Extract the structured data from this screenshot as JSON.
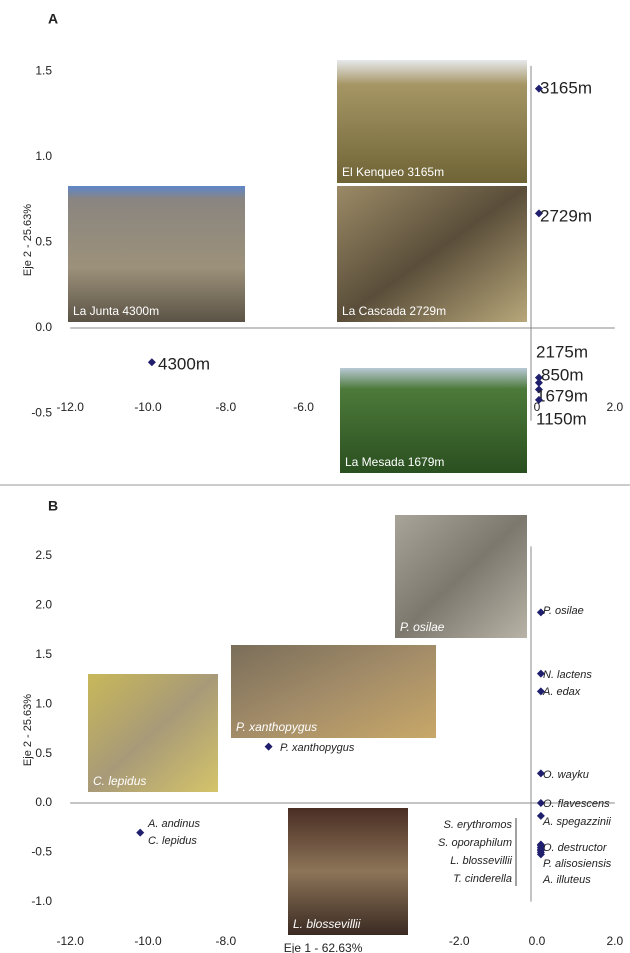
{
  "chart_data": [
    {
      "type": "scatter",
      "panel": "A",
      "ylabel": "Eje 2 - 25.63%",
      "xlim": [
        -12,
        2
      ],
      "ylim": [
        -0.6,
        1.65
      ],
      "xticks": [
        {
          "value": -12,
          "label": "-12.0"
        },
        {
          "value": -10,
          "label": "-10.0"
        },
        {
          "value": -8,
          "label": "-8.0"
        },
        {
          "value": -6,
          "label": "-6.0"
        },
        0,
        {
          "value": 2,
          "label": "2.0"
        }
      ],
      "yticks": [
        -0.5,
        {
          "value": 0,
          "label": "0.0"
        },
        0.5,
        {
          "value": 1,
          "label": "1.0"
        },
        1.5
      ],
      "color": "#1f1f6e",
      "x": [
        -9.9,
        0.05,
        0.05,
        0.05,
        0.05,
        0.05,
        0.05
      ],
      "values": [
        -0.2,
        1.4,
        0.67,
        -0.29,
        -0.32,
        -0.36,
        -0.42
      ],
      "point_labels": [
        [
          "4300m"
        ],
        [
          "3165m"
        ],
        [
          "2729m"
        ],
        [
          "2175m"
        ],
        [
          "850m"
        ],
        [
          "1679m"
        ],
        [
          "1150m"
        ]
      ],
      "photo_captions": [
        "El Kenqueo 3165m",
        "La Cascada 2729m",
        "La Junta 4300m",
        "La Mesada 1679m"
      ]
    },
    {
      "type": "scatter",
      "panel": "B",
      "ylabel": "Eje 2 - 25.63%",
      "xlabel": "Eje 1 - 62.63%",
      "xlim": [
        -12,
        2
      ],
      "ylim": [
        -1.1,
        2.8
      ],
      "xticks": [
        {
          "value": -12,
          "label": "-12.0"
        },
        {
          "value": -10,
          "label": "-10.0"
        },
        {
          "value": -8,
          "label": "-8.0"
        },
        {
          "value": -2,
          "label": "-2.0"
        },
        {
          "value": 0,
          "label": "0.0"
        },
        {
          "value": 2,
          "label": "2.0"
        }
      ],
      "yticks": [
        {
          "value": -1,
          "label": "-1.0"
        },
        -0.5,
        {
          "value": 0,
          "label": "0.0"
        },
        0.5,
        {
          "value": 1,
          "label": "1.0"
        },
        1.5,
        {
          "value": 2,
          "label": "2.0"
        },
        2.5
      ],
      "color": "#1f1f6e",
      "x": [
        0.1,
        0.1,
        0.1,
        -6.9,
        0.1,
        0.1,
        0.1,
        -10.2,
        0.1,
        0.1,
        0.1,
        0.1,
        0.1,
        0.1,
        0.1
      ],
      "values": [
        1.93,
        1.31,
        1.13,
        0.57,
        0.3,
        0.0,
        -0.13,
        -0.3,
        -0.42,
        -0.45,
        -0.48,
        -0.5,
        -0.43,
        -0.47,
        -0.52
      ],
      "point_labels": [
        [
          "P. osilae"
        ],
        [
          "N. lactens"
        ],
        [
          "A. edax"
        ],
        [
          "P. xanthopygus"
        ],
        [
          "O. wayku"
        ],
        [
          "O. flavescens"
        ],
        [
          "A. spegazzinii"
        ],
        [
          "A. andinus",
          "C. lepidus"
        ],
        [
          "S. erythromos"
        ],
        [
          "S. oporaphilum"
        ],
        [
          "L. blossevillii"
        ],
        [
          "T. cinderella"
        ],
        [
          "O. destructor"
        ],
        [
          "P. alisosiensis"
        ],
        [
          "A. illuteus"
        ]
      ],
      "photo_captions": [
        "P. osilae",
        "P. xanthopygus",
        "C. lepidus",
        "L. blossevillii"
      ]
    }
  ]
}
